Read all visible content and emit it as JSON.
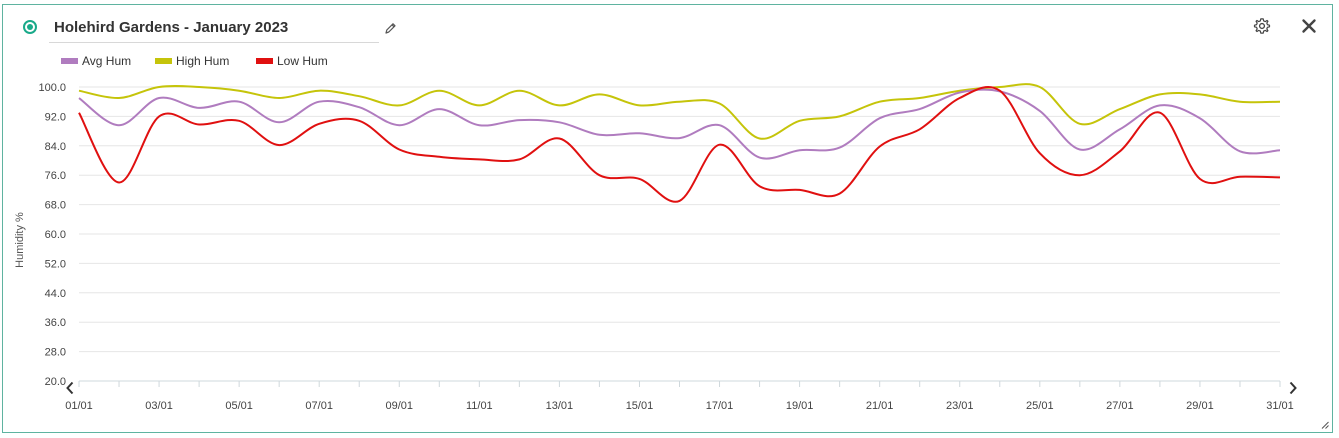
{
  "widget": {
    "title": "Holehird Gardens - January 2023"
  },
  "icons": {
    "status": "status-dot-icon",
    "edit": "pencil-icon",
    "settings": "gear-icon",
    "close": "close-icon",
    "prev": "chevron-left-icon",
    "next": "chevron-right-icon",
    "resize": "resize-handle-icon"
  },
  "colors": {
    "accent": "#1aaa8a",
    "border": "#5fb3a0"
  },
  "chart_data": {
    "type": "line",
    "ylabel": "Humidity %",
    "xlabel": "",
    "ylim": [
      20,
      100
    ],
    "yticks": [
      "20.0",
      "28.0",
      "36.0",
      "44.0",
      "52.0",
      "60.0",
      "68.0",
      "76.0",
      "84.0",
      "92.0",
      "100.0"
    ],
    "ytick_values": [
      20,
      28,
      36,
      44,
      52,
      60,
      68,
      76,
      84,
      92,
      100
    ],
    "x": [
      "01/01",
      "02/01",
      "03/01",
      "04/01",
      "05/01",
      "06/01",
      "07/01",
      "08/01",
      "09/01",
      "10/01",
      "11/01",
      "12/01",
      "13/01",
      "14/01",
      "15/01",
      "16/01",
      "17/01",
      "18/01",
      "19/01",
      "20/01",
      "21/01",
      "22/01",
      "23/01",
      "24/01",
      "25/01",
      "26/01",
      "27/01",
      "28/01",
      "29/01",
      "30/01",
      "31/01"
    ],
    "xticks": [
      "01/01",
      "03/01",
      "05/01",
      "07/01",
      "09/01",
      "11/01",
      "13/01",
      "15/01",
      "17/01",
      "19/01",
      "21/01",
      "23/01",
      "25/01",
      "27/01",
      "29/01",
      "31/01"
    ],
    "grid": true,
    "legend_position": "top-left",
    "series": [
      {
        "name": "Avg Hum",
        "color": "#b07cbf",
        "values": [
          97,
          89.6,
          97,
          94.3,
          96,
          90.4,
          96,
          94.5,
          89.6,
          94,
          89.6,
          91,
          90.4,
          87,
          87.4,
          86.1,
          89.6,
          80.8,
          82.8,
          83.5,
          91.5,
          94,
          98.5,
          98.8,
          93.5,
          83,
          88.5,
          95,
          91.5,
          82.5,
          82.8
        ]
      },
      {
        "name": "High Hum",
        "color": "#c5c40a",
        "values": [
          99,
          97,
          100,
          100,
          99,
          97,
          99,
          97.5,
          95,
          99,
          95,
          99,
          95,
          98,
          95,
          96,
          95.5,
          86,
          90.8,
          92,
          96,
          97,
          99,
          100,
          100,
          90,
          94,
          98,
          98,
          96,
          96
        ]
      },
      {
        "name": "Low Hum",
        "color": "#e01010",
        "values": [
          93,
          74,
          92,
          89.8,
          90.8,
          84.2,
          90,
          90.8,
          83,
          81,
          80.3,
          80.3,
          86,
          76,
          75,
          69,
          84.3,
          73,
          72,
          71,
          83.8,
          88.5,
          97,
          99,
          82,
          76,
          82.5,
          93,
          75,
          75.6,
          75.4
        ]
      }
    ]
  }
}
